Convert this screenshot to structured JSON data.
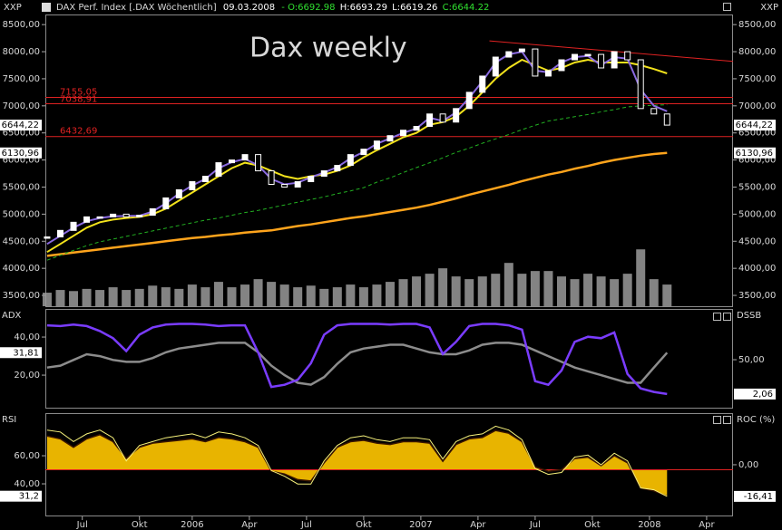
{
  "header": {
    "symbol_left": "XXP",
    "symbol_right": "XXP",
    "instrument": "DAX Perf. Index [.DAX Wöchentlich]",
    "date": "09.03.2008",
    "open": "- O:6692.98",
    "high": "H:6693.29",
    "low": "L:6619.26",
    "close": "C:6644.22"
  },
  "chart_data": [
    {
      "type": "candlestick",
      "annotation": "Dax weekly",
      "x": [
        0,
        3,
        6,
        9,
        12,
        15,
        18,
        21,
        24,
        27,
        30,
        33,
        36,
        39,
        42,
        45,
        48,
        51,
        54,
        57,
        60,
        63,
        66,
        69,
        72,
        75,
        78,
        81,
        84,
        87,
        90,
        93,
        96,
        99,
        102,
        105,
        108,
        111,
        114,
        117,
        120,
        123,
        126,
        129,
        132,
        135,
        138,
        141
      ],
      "xlim": [
        -0.4,
        156
      ],
      "ylim": [
        3300,
        8670
      ],
      "yticks": [
        {
          "value": 3500,
          "label": "3500,00"
        },
        {
          "value": 4000,
          "label": "4000,00"
        },
        {
          "value": 4500,
          "label": "4500,00"
        },
        {
          "value": 5000,
          "label": "5000,00"
        },
        {
          "value": 5500,
          "label": "5500,00"
        },
        {
          "value": 6000,
          "label": "6000,00"
        },
        {
          "value": 6500,
          "label": "6500,00"
        },
        {
          "value": 7000,
          "label": "7000,00"
        },
        {
          "value": 7500,
          "label": "7500,00"
        },
        {
          "value": 8000,
          "label": "8000,00"
        },
        {
          "value": 8500,
          "label": "8500,00"
        }
      ],
      "close": {
        "color": "#ffffff",
        "values": [
          4580,
          4700,
          4850,
          4950,
          4950,
          5000,
          4950,
          4980,
          5100,
          5300,
          5450,
          5600,
          5700,
          5950,
          6000,
          6100,
          5800,
          5550,
          5500,
          5600,
          5700,
          5800,
          5900,
          6100,
          6200,
          6350,
          6450,
          6550,
          6620,
          6850,
          6700,
          6950,
          7250,
          7550,
          7900,
          8000,
          8050,
          7550,
          7650,
          7850,
          7950,
          7950,
          7700,
          8000,
          7850,
          6950,
          6850,
          6644.22
        ]
      },
      "volume": {
        "color": "#9a9a9a",
        "values": [
          3550,
          3600,
          3580,
          3620,
          3600,
          3650,
          3600,
          3620,
          3680,
          3650,
          3620,
          3700,
          3650,
          3750,
          3650,
          3700,
          3800,
          3750,
          3700,
          3650,
          3680,
          3620,
          3650,
          3700,
          3650,
          3700,
          3750,
          3800,
          3850,
          3900,
          4000,
          3850,
          3800,
          3850,
          3900,
          4100,
          3900,
          3950,
          3950,
          3850,
          3800,
          3900,
          3850,
          3800,
          3900,
          4350,
          3800,
          3700
        ]
      },
      "series": [
        {
          "color": "#ffa41c",
          "width": 2.5,
          "values": [
            4230,
            4260,
            4290,
            4320,
            4350,
            4380,
            4410,
            4440,
            4470,
            4500,
            4530,
            4560,
            4580,
            4610,
            4630,
            4660,
            4680,
            4700,
            4740,
            4780,
            4810,
            4850,
            4890,
            4930,
            4960,
            5000,
            5040,
            5080,
            5120,
            5170,
            5230,
            5290,
            5360,
            5420,
            5480,
            5540,
            5610,
            5670,
            5730,
            5780,
            5840,
            5890,
            5950,
            6000,
            6040,
            6080,
            6110,
            6130.96
          ]
        },
        {
          "color": "#22b022",
          "width": 1,
          "dashed": true,
          "values": [
            4150,
            4240,
            4330,
            4420,
            4490,
            4540,
            4590,
            4640,
            4690,
            4740,
            4790,
            4840,
            4890,
            4930,
            4980,
            5030,
            5070,
            5120,
            5170,
            5220,
            5270,
            5320,
            5380,
            5430,
            5490,
            5590,
            5670,
            5770,
            5860,
            5950,
            6040,
            6140,
            6220,
            6310,
            6390,
            6470,
            6560,
            6640,
            6720,
            6760,
            6800,
            6840,
            6890,
            6930,
            6980,
            7000,
            7010,
            7020
          ]
        },
        {
          "color": "#f2e21c",
          "width": 2,
          "values": [
            4300,
            4450,
            4600,
            4750,
            4850,
            4900,
            4930,
            4950,
            5000,
            5100,
            5250,
            5400,
            5550,
            5700,
            5850,
            5950,
            5900,
            5800,
            5700,
            5650,
            5700,
            5730,
            5800,
            5900,
            6050,
            6180,
            6300,
            6420,
            6500,
            6650,
            6700,
            6800,
            7000,
            7250,
            7500,
            7700,
            7850,
            7750,
            7650,
            7700,
            7800,
            7850,
            7800,
            7800,
            7800,
            7750,
            7680,
            7600
          ]
        },
        {
          "color": "#8a6ae0",
          "width": 2,
          "values": [
            4450,
            4600,
            4750,
            4870,
            4930,
            4960,
            4970,
            4970,
            5050,
            5200,
            5380,
            5530,
            5650,
            5850,
            5960,
            6020,
            5900,
            5650,
            5550,
            5580,
            5680,
            5770,
            5870,
            6030,
            6150,
            6300,
            6400,
            6500,
            6580,
            6780,
            6720,
            6880,
            7150,
            7450,
            7800,
            7950,
            8000,
            7650,
            7620,
            7800,
            7900,
            7920,
            7750,
            7900,
            7870,
            7300,
            7000,
            6900
          ]
        }
      ],
      "levels": [
        {
          "value": 7155.05,
          "label": "7155,05"
        },
        {
          "value": 7038.91,
          "label": "7038,91"
        },
        {
          "value": 6432.69,
          "label": "6432,69"
        }
      ],
      "level_color": "#e02222",
      "trendline": {
        "color": "#e02222",
        "x": [
          100.6,
          156
        ],
        "values": [
          8200,
          7820
        ]
      },
      "last_labels": [
        {
          "value": 6644.22,
          "label": "6644,22"
        },
        {
          "value": 6130.96,
          "label": "6130,96"
        }
      ]
    },
    {
      "type": "line",
      "x": [
        0,
        3,
        6,
        9,
        12,
        15,
        18,
        21,
        24,
        27,
        30,
        33,
        36,
        39,
        42,
        45,
        48,
        51,
        54,
        57,
        60,
        63,
        66,
        69,
        72,
        75,
        78,
        81,
        84,
        87,
        90,
        93,
        96,
        99,
        102,
        105,
        108,
        111,
        114,
        117,
        120,
        123,
        126,
        129,
        132,
        135,
        138,
        141
      ],
      "xlim": [
        -0.4,
        156
      ],
      "ylim": [
        2.9,
        54.3
      ],
      "yticks": [
        {
          "value": 40,
          "label": "40,00"
        },
        {
          "value": 20,
          "label": "20,00"
        }
      ],
      "y2lim": [
        -17,
        119.6
      ],
      "y2ticks": [
        {
          "value": 50,
          "label": "50,00"
        }
      ],
      "series": [
        {
          "name": "ADX",
          "color": "#8c8c8c",
          "last_label": "31,81",
          "values": [
            24,
            25,
            28,
            31,
            30,
            28,
            27,
            27,
            29,
            32,
            34,
            35,
            36,
            37,
            37,
            37,
            32,
            25,
            20,
            16,
            15,
            19,
            26,
            32,
            34,
            35,
            36,
            36,
            34,
            32,
            31,
            31,
            33,
            36,
            37,
            37,
            36,
            33,
            30,
            27,
            24,
            22,
            20,
            18,
            16,
            16,
            24,
            31.81
          ]
        },
        {
          "name": "DSSB",
          "axis": "y2",
          "color": "#7a3cff",
          "last_label": "2,06",
          "values": [
            98,
            97,
            99,
            97,
            90,
            80,
            62,
            85,
            95,
            99,
            100,
            100,
            99,
            97,
            98,
            98,
            60,
            12,
            15,
            22,
            45,
            85,
            98,
            100,
            100,
            100,
            99,
            100,
            100,
            95,
            58,
            75,
            97,
            100,
            100,
            98,
            92,
            20,
            15,
            35,
            75,
            82,
            80,
            88,
            30,
            10,
            5,
            2.06
          ]
        }
      ]
    },
    {
      "type": "area",
      "x": [
        0,
        3,
        6,
        9,
        12,
        15,
        18,
        21,
        24,
        27,
        30,
        33,
        36,
        39,
        42,
        45,
        48,
        51,
        54,
        57,
        60,
        63,
        66,
        69,
        72,
        75,
        78,
        81,
        84,
        87,
        90,
        93,
        96,
        99,
        102,
        105,
        108,
        111,
        114,
        117,
        120,
        123,
        126,
        129,
        132,
        135,
        138,
        141
      ],
      "xlim": [
        -0.4,
        156
      ],
      "ylim": [
        16.8,
        89.7
      ],
      "yticks": [
        {
          "value": 60,
          "label": "60,00"
        },
        {
          "value": 40,
          "label": "40,00"
        }
      ],
      "y2lim": [
        -26.8,
        26.3
      ],
      "y2ticks": [
        {
          "value": 0,
          "label": "0,00"
        }
      ],
      "levels": [
        50
      ],
      "level_color": "#e02222",
      "xticks": [
        {
          "value": 8,
          "label": "Jul"
        },
        {
          "value": 21,
          "label": "Okt"
        },
        {
          "value": 33,
          "label": "2006"
        },
        {
          "value": 46,
          "label": "Apr"
        },
        {
          "value": 59,
          "label": "Jul"
        },
        {
          "value": 72,
          "label": "Okt"
        },
        {
          "value": 85,
          "label": "2007"
        },
        {
          "value": 98,
          "label": "Apr"
        },
        {
          "value": 111,
          "label": "Jul"
        },
        {
          "value": 124,
          "label": "Okt"
        },
        {
          "value": 137,
          "label": "2008"
        },
        {
          "value": 150,
          "label": "Apr"
        }
      ],
      "series": [
        {
          "name": "RSI",
          "color": "#e8b400",
          "line_color": "#3a1500",
          "last_label": "31,2",
          "values": [
            74,
            72,
            66,
            72,
            75,
            70,
            58,
            66,
            69,
            70,
            71,
            72,
            70,
            73,
            72,
            70,
            66,
            49,
            47,
            43,
            42,
            55,
            66,
            70,
            71,
            69,
            68,
            70,
            70,
            69,
            56,
            68,
            72,
            73,
            78,
            76,
            70,
            52,
            49,
            50,
            58,
            59,
            53,
            60,
            55,
            37,
            35,
            31.2
          ]
        },
        {
          "name": "ROC (%)",
          "axis": "y2",
          "color": "#f5f07a",
          "last_label": "-16,41",
          "values": [
            18,
            17,
            12,
            16,
            18,
            14,
            2,
            10,
            12,
            14,
            15,
            16,
            14,
            17,
            16,
            14,
            10,
            -3,
            -6,
            -10,
            -10,
            2,
            10,
            14,
            15,
            13,
            12,
            14,
            14,
            13,
            3,
            12,
            15,
            16,
            20,
            18,
            13,
            -2,
            -5,
            -4,
            4,
            5,
            0,
            6,
            2,
            -12,
            -13,
            -16.41
          ]
        }
      ]
    }
  ]
}
